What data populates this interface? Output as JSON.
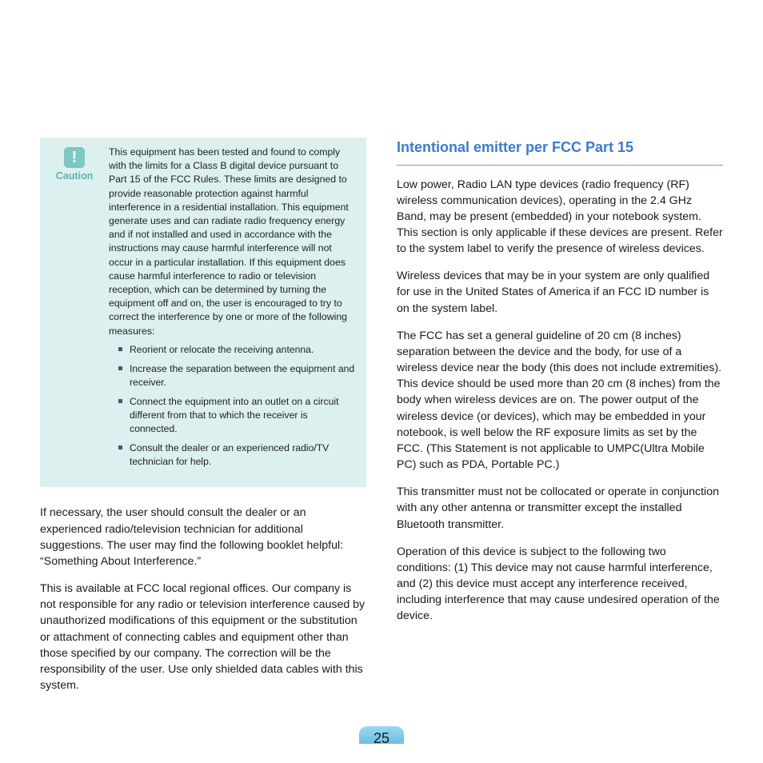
{
  "caution": {
    "icon_glyph": "!",
    "label": "Caution",
    "intro": "This equipment has been tested and found to comply with the limits for a Class B digital device pursuant to Part 15 of the FCC Rules. These limits are designed to provide reasonable protection against harmful interference in a residential installation. This equipment generate uses and can radiate radio frequency energy and if not installed and used in accordance with the instructions may cause harmful interference will not occur in a particular installation. If this equipment does cause harmful interference to radio or television reception, which can be determined by turning the equipment off and on, the user is encouraged to try to correct the interference by one or more of the following measures:",
    "items": [
      "Reorient or relocate the receiving antenna.",
      "Increase the separation between the equipment and receiver.",
      "Connect the equipment into an outlet on a circuit different from that to which the receiver is connected.",
      "Consult the dealer or an experienced radio/TV technician for help."
    ]
  },
  "left_paragraphs": [
    "If necessary, the user should consult the dealer or an experienced radio/television technician for additional suggestions. The user may find the following booklet helpful: “Something About Interference.”",
    "This is available at FCC local regional offices. Our company is not responsible for any radio or television interference caused by unauthorized modifications of this equipment or the substitution or attachment of connecting cables and equipment other than those specified by our company. The correction will be the responsibility of the user. Use only shielded data cables with this system."
  ],
  "right": {
    "title": "Intentional emitter per FCC Part 15",
    "paragraphs": [
      "Low power, Radio LAN type devices (radio frequency (RF) wireless communication devices), operating in the 2.4 GHz Band, may be present (embedded) in your notebook system. This section is only applicable if these devices are present. Refer to the system label to verify the presence of wireless devices.",
      "Wireless devices that may be in your system are only qualified for use in the United States of America if an FCC ID number is on the system label.",
      "The FCC has set a general guideline of 20 cm (8 inches) separation between the device and the body, for use of a wireless device near the body (this does not include extremities). This device should be used more than 20 cm (8 inches) from the body when wireless devices are on. The power output of the wireless device (or devices), which may be embedded in your notebook, is well below the RF exposure limits as set by the FCC. (This Statement is not applicable to UMPC(Ultra Mobile PC) such as PDA, Portable PC.)",
      "This transmitter must not be collocated or operate in conjunction with any other antenna or transmitter except the installed Bluetooth transmitter.",
      "Operation of this device is subject to the following two conditions: (1) This device may not cause harmful interference, and (2) this device must accept any interference received, including interference that may cause undesired operation of the device."
    ]
  },
  "page_number": "25",
  "colors": {
    "accent": "#3a7bd5",
    "caution_bg": "#dcf0ef",
    "caution_icon_bg": "#7bc8c4",
    "caution_text": "#5db3ae",
    "page_tab_top": "#9dd6ef",
    "page_tab_bottom": "#6ac1e3"
  }
}
